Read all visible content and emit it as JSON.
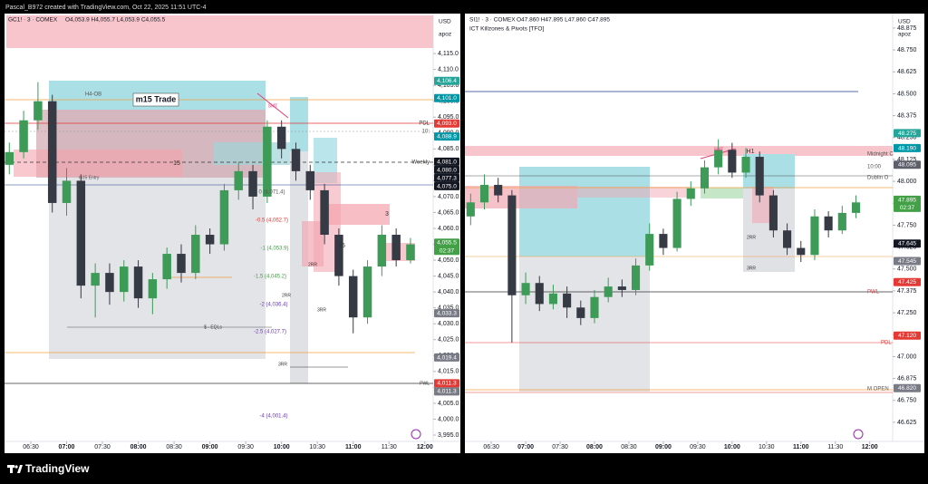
{
  "header": {
    "caption": "Pascal_B972 created with TradingView.com, Oct 22, 2025 11:51 UTC-4",
    "brand": "TradingView"
  },
  "chart_data": [
    {
      "type": "candlestick",
      "title": "GC1! · 3 · COMEX",
      "ohlc_text": "O4,053.9  H4,055.7  L4,053.9  C4,055.5",
      "currency": "USD",
      "scale_label": "apoz",
      "up_color": "#3d9a57",
      "down_color": "#363a45",
      "x": [
        372,
        384,
        396,
        408,
        420,
        432,
        444,
        456,
        468,
        480,
        492,
        504,
        516,
        528,
        540,
        552,
        564,
        576,
        588,
        600,
        612,
        624,
        636,
        648,
        660,
        672,
        684,
        696,
        708
      ],
      "open": [
        4080,
        4084,
        4094,
        4100,
        4068,
        4075,
        4042,
        4046,
        4040,
        4048,
        4038,
        4044,
        4052,
        4046,
        4058,
        4055,
        4072,
        4078,
        4070,
        4092,
        4085,
        4078,
        4072,
        4058,
        4045,
        4032,
        4048,
        4058,
        4050
      ],
      "high": [
        4087,
        4097,
        4106,
        4102,
        4079,
        4077,
        4049,
        4049,
        4050,
        4050,
        4046,
        4054,
        4055,
        4061,
        4060,
        4074,
        4081,
        4080,
        4094,
        4094,
        4087,
        4080,
        4074,
        4060,
        4047,
        4050,
        4061,
        4060,
        4057
      ],
      "low": [
        4077,
        4082,
        4091,
        4065,
        4064,
        4038,
        4032,
        4036,
        4037,
        4035,
        4033,
        4041,
        4043,
        4044,
        4052,
        4053,
        4069,
        4066,
        4068,
        4082,
        4075,
        4069,
        4055,
        4042,
        4027,
        4030,
        4045,
        4048,
        4049
      ],
      "close": [
        4084,
        4094,
        4100,
        4068,
        4075,
        4042,
        4046,
        4040,
        4048,
        4038,
        4044,
        4052,
        4046,
        4058,
        4055,
        4072,
        4078,
        4070,
        4092,
        4085,
        4078,
        4072,
        4058,
        4045,
        4032,
        4048,
        4058,
        4050,
        4055
      ],
      "xlim": [
        368,
        727
      ],
      "xticks": [
        {
          "value": 390,
          "label": "06:30"
        },
        {
          "value": 420,
          "label": "07:00"
        },
        {
          "value": 450,
          "label": "07:30"
        },
        {
          "value": 480,
          "label": "08:00"
        },
        {
          "value": 510,
          "label": "08:30"
        },
        {
          "value": 540,
          "label": "09:00"
        },
        {
          "value": 570,
          "label": "09:30"
        },
        {
          "value": 600,
          "label": "10:00"
        },
        {
          "value": 630,
          "label": "10:30"
        },
        {
          "value": 660,
          "label": "11:00"
        },
        {
          "value": 690,
          "label": "11:30"
        },
        {
          "value": 720,
          "label": "12:00"
        }
      ],
      "ylim": [
        3993,
        4127
      ],
      "yticks": [
        {
          "value": 3995,
          "label": "3,995.0"
        },
        {
          "value": 4000,
          "label": "4,000.0"
        },
        {
          "value": 4005,
          "label": "4,005.0"
        },
        {
          "value": 4010,
          "label": "4,010.0"
        },
        {
          "value": 4015,
          "label": "4,015.0"
        },
        {
          "value": 4020,
          "label": "4,020.0"
        },
        {
          "value": 4025,
          "label": "4,025.0"
        },
        {
          "value": 4030,
          "label": "4,030.0"
        },
        {
          "value": 4035,
          "label": "4,035.0"
        },
        {
          "value": 4040,
          "label": "4,040.0"
        },
        {
          "value": 4045,
          "label": "4,045.0"
        },
        {
          "value": 4050,
          "label": "4,050.0"
        },
        {
          "value": 4055,
          "label": "4,055.0"
        },
        {
          "value": 4060,
          "label": "4,060.0"
        },
        {
          "value": 4065,
          "label": "4,065.0"
        },
        {
          "value": 4070,
          "label": "4,070.0"
        },
        {
          "value": 4075,
          "label": "4,075.0"
        },
        {
          "value": 4080,
          "label": "4,080.0"
        },
        {
          "value": 4085,
          "label": "4,085.0"
        },
        {
          "value": 4090,
          "label": "4,090.0"
        },
        {
          "value": 4095,
          "label": "4,095.0"
        },
        {
          "value": 4100,
          "label": "4,100.0"
        },
        {
          "value": 4105,
          "label": "4,105.0"
        },
        {
          "value": 4110,
          "label": "4,110.0"
        },
        {
          "value": 4115,
          "label": "4,115.0"
        }
      ],
      "price_tags": [
        {
          "value": 4106.4,
          "label": "4,106.4",
          "color": "#26a69a"
        },
        {
          "value": 4101.0,
          "label": "4,101.0",
          "color": "#0097a7"
        },
        {
          "value": 4093.0,
          "label": "4,093.0",
          "color": "#e53935"
        },
        {
          "value": 4088.9,
          "label": "4,088.9",
          "color": "#0097a7"
        },
        {
          "value": 4081.0,
          "label": "4,081.0",
          "color": "#131722"
        },
        {
          "value": 4080.0,
          "label": "4,080.0",
          "color": "#131722"
        },
        {
          "value": 4077.3,
          "label": "4,077.3",
          "color": "#131722"
        },
        {
          "value": 4075.0,
          "label": "4,075.0",
          "color": "#131722"
        },
        {
          "value": 4055.5,
          "label": "4,055.5",
          "color": "#43a047",
          "countdown": "02:37"
        },
        {
          "value": 4033.3,
          "label": "4,033.3",
          "color": "#787b86"
        },
        {
          "value": 4019.4,
          "label": "4,019.4",
          "color": "#787b86"
        },
        {
          "value": 4011.3,
          "label": "4,011.3",
          "color": "#e53935"
        },
        {
          "value": 4011.3,
          "label": "4,011.3",
          "color": "#787b86"
        }
      ],
      "annotations": [
        "H4-OB",
        "m15 Trade",
        "m15 Entry",
        "15",
        "Weekly",
        "PDL",
        "10:",
        "SMT",
        "0 (4,071.4)",
        "-0.5 (4,062.7)",
        "-1 (4,053.9)",
        "-1.5 (4,045.2)",
        "-2 (4,036.4)",
        "-2.5 (4,027.7)",
        "-4 (4,001.4)",
        "2RR",
        "2RR",
        "3RR",
        "3RR",
        "$ - EQLs",
        "3",
        "15",
        "PWL"
      ]
    },
    {
      "type": "candlestick",
      "title": "SI1! · 3 · COMEX",
      "ohlc_text": "O47.860  H47.895  L47.860  C47.895",
      "subtitle": "ICT Killzones & Pivots [TFO]",
      "currency": "USD",
      "scale_label": "apoz",
      "up_color": "#3d9a57",
      "down_color": "#363a45",
      "x": [
        372,
        384,
        396,
        408,
        420,
        432,
        444,
        456,
        468,
        480,
        492,
        504,
        516,
        528,
        540,
        552,
        564,
        576,
        588,
        600,
        612,
        624,
        636,
        648,
        660,
        672,
        684,
        696,
        708
      ],
      "open": [
        47.8,
        47.88,
        47.98,
        47.92,
        47.35,
        47.42,
        47.3,
        47.36,
        47.28,
        47.22,
        47.34,
        47.4,
        47.38,
        47.52,
        47.7,
        47.62,
        47.9,
        47.96,
        48.08,
        48.18,
        48.05,
        48.14,
        47.92,
        47.72,
        47.62,
        47.58,
        47.8,
        47.72,
        47.82
      ],
      "high": [
        47.93,
        48.04,
        48.02,
        47.95,
        47.48,
        47.46,
        47.41,
        47.4,
        47.32,
        47.38,
        47.45,
        47.44,
        47.56,
        47.76,
        47.73,
        47.94,
        48.0,
        48.12,
        48.24,
        48.22,
        48.19,
        48.17,
        47.95,
        47.76,
        47.66,
        47.84,
        47.83,
        47.86,
        47.92
      ],
      "low": [
        47.75,
        47.84,
        47.88,
        47.08,
        47.3,
        47.26,
        47.27,
        47.22,
        47.18,
        47.19,
        47.31,
        47.34,
        47.35,
        47.49,
        47.58,
        47.6,
        47.86,
        47.93,
        48.04,
        48.02,
        48.02,
        47.88,
        47.68,
        47.58,
        47.54,
        47.55,
        47.68,
        47.7,
        47.79
      ],
      "close": [
        47.88,
        47.98,
        47.92,
        47.35,
        47.42,
        47.3,
        47.36,
        47.28,
        47.22,
        47.34,
        47.4,
        47.38,
        47.52,
        47.7,
        47.62,
        47.9,
        47.96,
        48.08,
        48.18,
        48.05,
        48.14,
        47.92,
        47.72,
        47.62,
        47.58,
        47.8,
        47.72,
        47.82,
        47.88
      ],
      "xlim": [
        367,
        740
      ],
      "xticks": [
        {
          "value": 390,
          "label": "06:30"
        },
        {
          "value": 420,
          "label": "07:00"
        },
        {
          "value": 450,
          "label": "07:30"
        },
        {
          "value": 480,
          "label": "08:00"
        },
        {
          "value": 510,
          "label": "08:30"
        },
        {
          "value": 540,
          "label": "09:00"
        },
        {
          "value": 570,
          "label": "09:30"
        },
        {
          "value": 600,
          "label": "10:00"
        },
        {
          "value": 630,
          "label": "10:30"
        },
        {
          "value": 660,
          "label": "11:00"
        },
        {
          "value": 690,
          "label": "11:30"
        },
        {
          "value": 720,
          "label": "12:00"
        }
      ],
      "ylim": [
        46.516,
        48.947
      ],
      "yticks": [
        46.625,
        {
          "value": 46.75,
          "label": "46.750"
        },
        46.875,
        {
          "value": 47,
          "label": "47.000"
        },
        47.125,
        {
          "value": 47.25,
          "label": "47.250"
        },
        47.375,
        {
          "value": 47.5,
          "label": "47.500"
        },
        47.625,
        {
          "value": 47.75,
          "label": "47.750"
        },
        47.875,
        {
          "value": 48,
          "label": "48.000"
        },
        48.125,
        {
          "value": 48.25,
          "label": "48.250"
        },
        48.375,
        {
          "value": 48.5,
          "label": "48.500"
        },
        48.625,
        {
          "value": 48.75,
          "label": "48.750"
        },
        48.875
      ],
      "price_tags": [
        {
          "value": 48.275,
          "label": "48.275",
          "color": "#26a69a"
        },
        {
          "value": 48.19,
          "label": "48.190",
          "color": "#0097a7"
        },
        {
          "value": 48.095,
          "label": "48.095",
          "color": "#5d606b"
        },
        {
          "value": 47.895,
          "label": "47.895",
          "color": "#43a047",
          "countdown": "02:37"
        },
        {
          "value": 47.645,
          "label": "47.645",
          "color": "#131722"
        },
        {
          "value": 47.545,
          "label": "47.545",
          "color": "#787b86"
        },
        {
          "value": 47.425,
          "label": "47.425",
          "color": "#e53935"
        },
        {
          "value": 47.12,
          "label": "47.120",
          "color": "#e53935"
        },
        {
          "value": 46.82,
          "label": "46.820",
          "color": "#787b86"
        }
      ],
      "annotations": [
        "Midnight C",
        "10:00",
        "Dublin O",
        "PWL",
        "PDL",
        "M OPEN",
        "H1",
        "SMT",
        "2RR",
        "3RR"
      ]
    }
  ]
}
